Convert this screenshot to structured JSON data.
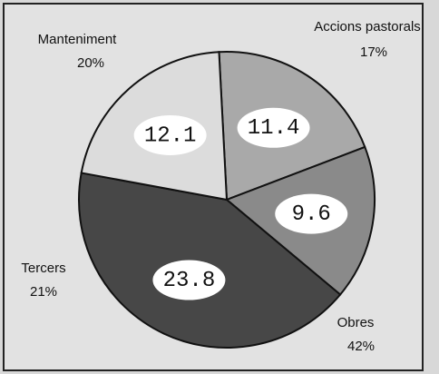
{
  "chart_data": {
    "type": "pie",
    "categories": [
      "Manteniment",
      "Accions pastorals",
      "Obres",
      "Tercers"
    ],
    "values": [
      11.4,
      9.6,
      23.8,
      12.1
    ],
    "percent_labels": [
      "20%",
      "17%",
      "42%",
      "21%"
    ],
    "colors": [
      "#a9a9a9",
      "#8a8a8a",
      "#474747",
      "#dcdcdc"
    ]
  }
}
